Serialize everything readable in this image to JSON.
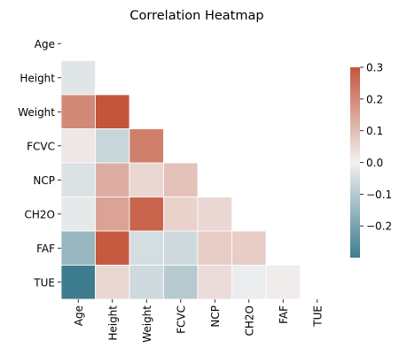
{
  "chart_data": {
    "type": "heatmap",
    "title": "Correlation Heatmap",
    "mask": "upper-triangle-including-diagonal",
    "row_labels": [
      "Age",
      "Height",
      "Weight",
      "FCVC",
      "NCP",
      "CH2O",
      "FAF",
      "TUE"
    ],
    "col_labels": [
      "Age",
      "Height",
      "Weight",
      "FCVC",
      "NCP",
      "CH2O",
      "FAF",
      "TUE"
    ],
    "matrix": [
      [
        null,
        null,
        null,
        null,
        null,
        null,
        null,
        null
      ],
      [
        -0.03,
        null,
        null,
        null,
        null,
        null,
        null,
        null
      ],
      [
        0.2,
        0.46,
        null,
        null,
        null,
        null,
        null,
        null
      ],
      [
        0.02,
        -0.07,
        0.22,
        null,
        null,
        null,
        null,
        null
      ],
      [
        -0.04,
        0.13,
        0.05,
        0.09,
        null,
        null,
        null,
        null
      ],
      [
        -0.02,
        0.15,
        0.27,
        0.06,
        0.05,
        null,
        null,
        null
      ],
      [
        -0.15,
        0.29,
        -0.05,
        -0.06,
        0.07,
        0.07,
        null,
        null
      ],
      [
        -0.3,
        0.05,
        -0.06,
        -0.1,
        0.04,
        -0.01,
        0.01,
        null
      ]
    ],
    "colorbar": {
      "vmin": -0.3,
      "vmax": 0.3,
      "ticks": [
        0.3,
        0.2,
        0.1,
        0.0,
        -0.1,
        -0.2
      ],
      "tick_labels": [
        "0.3",
        "0.2",
        "0.1",
        "0.0",
        "−0.1",
        "−0.2"
      ]
    },
    "colormap": {
      "low": "#3d7d8f",
      "mid": "#f2f1f1",
      "high": "#c3553a"
    }
  }
}
